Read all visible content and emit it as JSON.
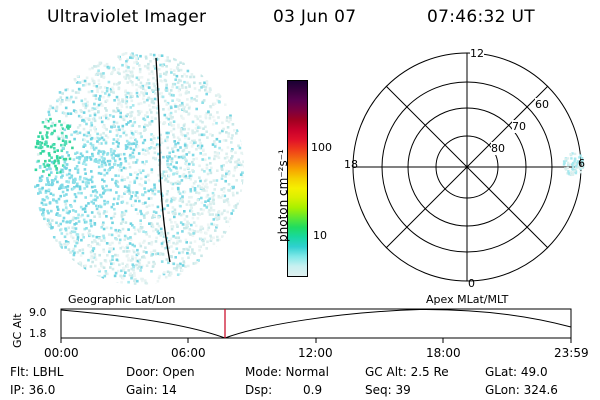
{
  "header": {
    "title": "Ultraviolet Imager",
    "date": "03 Jun 07",
    "time": "07:46:32 UT"
  },
  "colorbar": {
    "unit_label": "photon cm⁻²s⁻¹",
    "ticks": [
      "100",
      "10"
    ],
    "colors": [
      "#1a0033",
      "#3a0040",
      "#5a0050",
      "#7a0040",
      "#a00020",
      "#c8002a",
      "#e0102a",
      "#ee3a1a",
      "#f36c10",
      "#f8a000",
      "#f5d000",
      "#f5f000",
      "#d8f000",
      "#a8f000",
      "#60e830",
      "#20dc60",
      "#18d8a0",
      "#30d0d0",
      "#80e8e8",
      "#c8f0f0",
      "#e0f0f0"
    ]
  },
  "polar_plot": {
    "mlt_labels": {
      "top": "12",
      "left": "18",
      "right": "6",
      "bottom": "0"
    },
    "lat_labels": [
      "60",
      "70",
      "80"
    ]
  },
  "alt_plot": {
    "ylabel": "GC Alt",
    "yticks": [
      "9.0",
      "1.8"
    ],
    "left_label": "Geographic Lat/Lon",
    "right_label": "Apex  MLat/MLT",
    "xticks": [
      "00:00",
      "06:00",
      "12:00",
      "18:00",
      "23:59"
    ]
  },
  "status": {
    "filter": "Flt: LBHL",
    "ip": "IP: 36.0",
    "door": "Door: Open",
    "gain": "Gain: 14",
    "mode": "Mode: Normal",
    "dsp_label": "Dsp:",
    "dsp_value": "0.9",
    "gc_alt": "GC Alt: 2.5 Re",
    "seq": "Seq: 39",
    "glat": "GLat:  49.0",
    "glon": "GLon: 324.6"
  }
}
